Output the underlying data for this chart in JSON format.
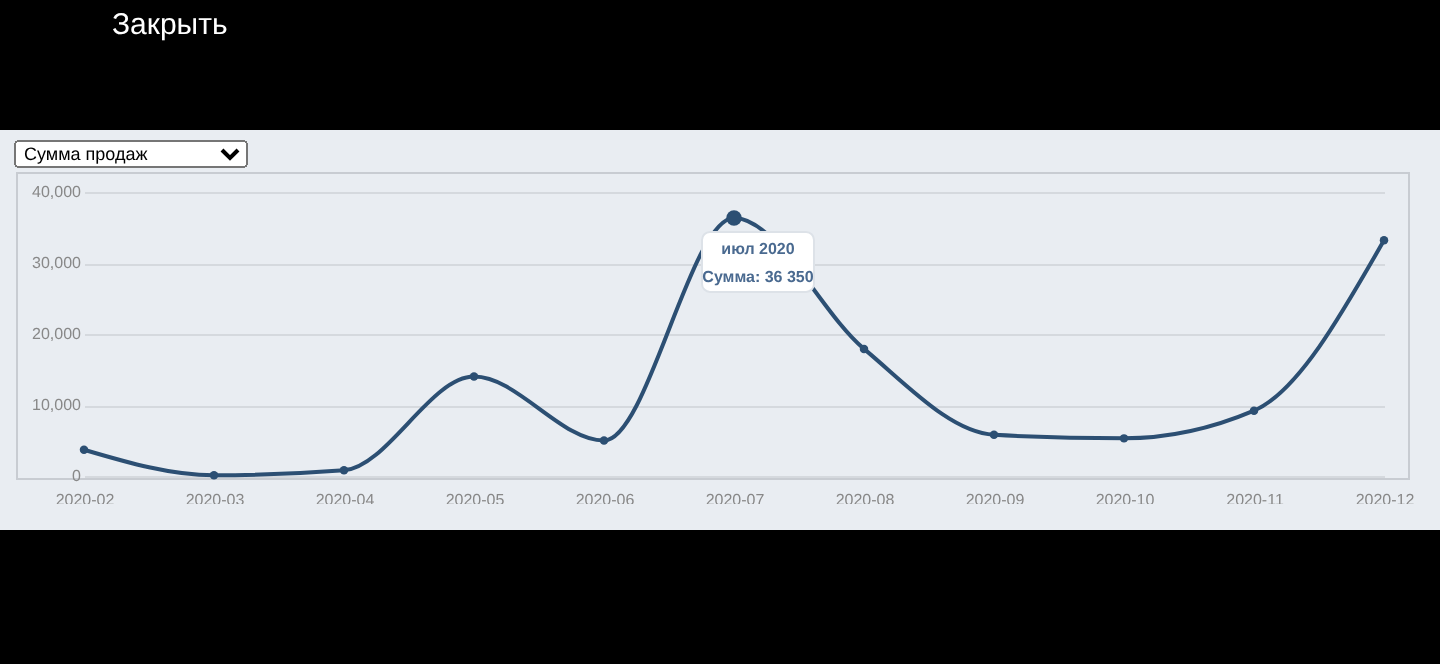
{
  "chart_data": {
    "type": "line",
    "categories": [
      "2020-02",
      "2020-03",
      "2020-04",
      "2020-05",
      "2020-06",
      "2020-07",
      "2020-08",
      "2020-09",
      "2020-10",
      "2020-11",
      "2020-12"
    ],
    "series": [
      {
        "color": "#2c4f73",
        "values": [
          3700,
          100,
          800,
          14000,
          5000,
          36350,
          17900,
          5800,
          5300,
          9200,
          33200
        ]
      }
    ],
    "ylim": [
      0,
      40000
    ],
    "yticks": [
      0,
      {
        "value": 10000,
        "label": "10,000"
      },
      {
        "value": 20000,
        "label": "20,000"
      },
      {
        "value": 30000,
        "label": "30,000"
      },
      {
        "value": 40000,
        "label": "40,000"
      }
    ],
    "grid": "y",
    "marker": "circle",
    "line_style": "solid",
    "annotations": [
      "Закрыть",
      "Сумма продаж",
      {
        "text": "июл 2020\nСумма: 36 350",
        "x": "2020-07",
        "y": 36350
      }
    ]
  }
}
